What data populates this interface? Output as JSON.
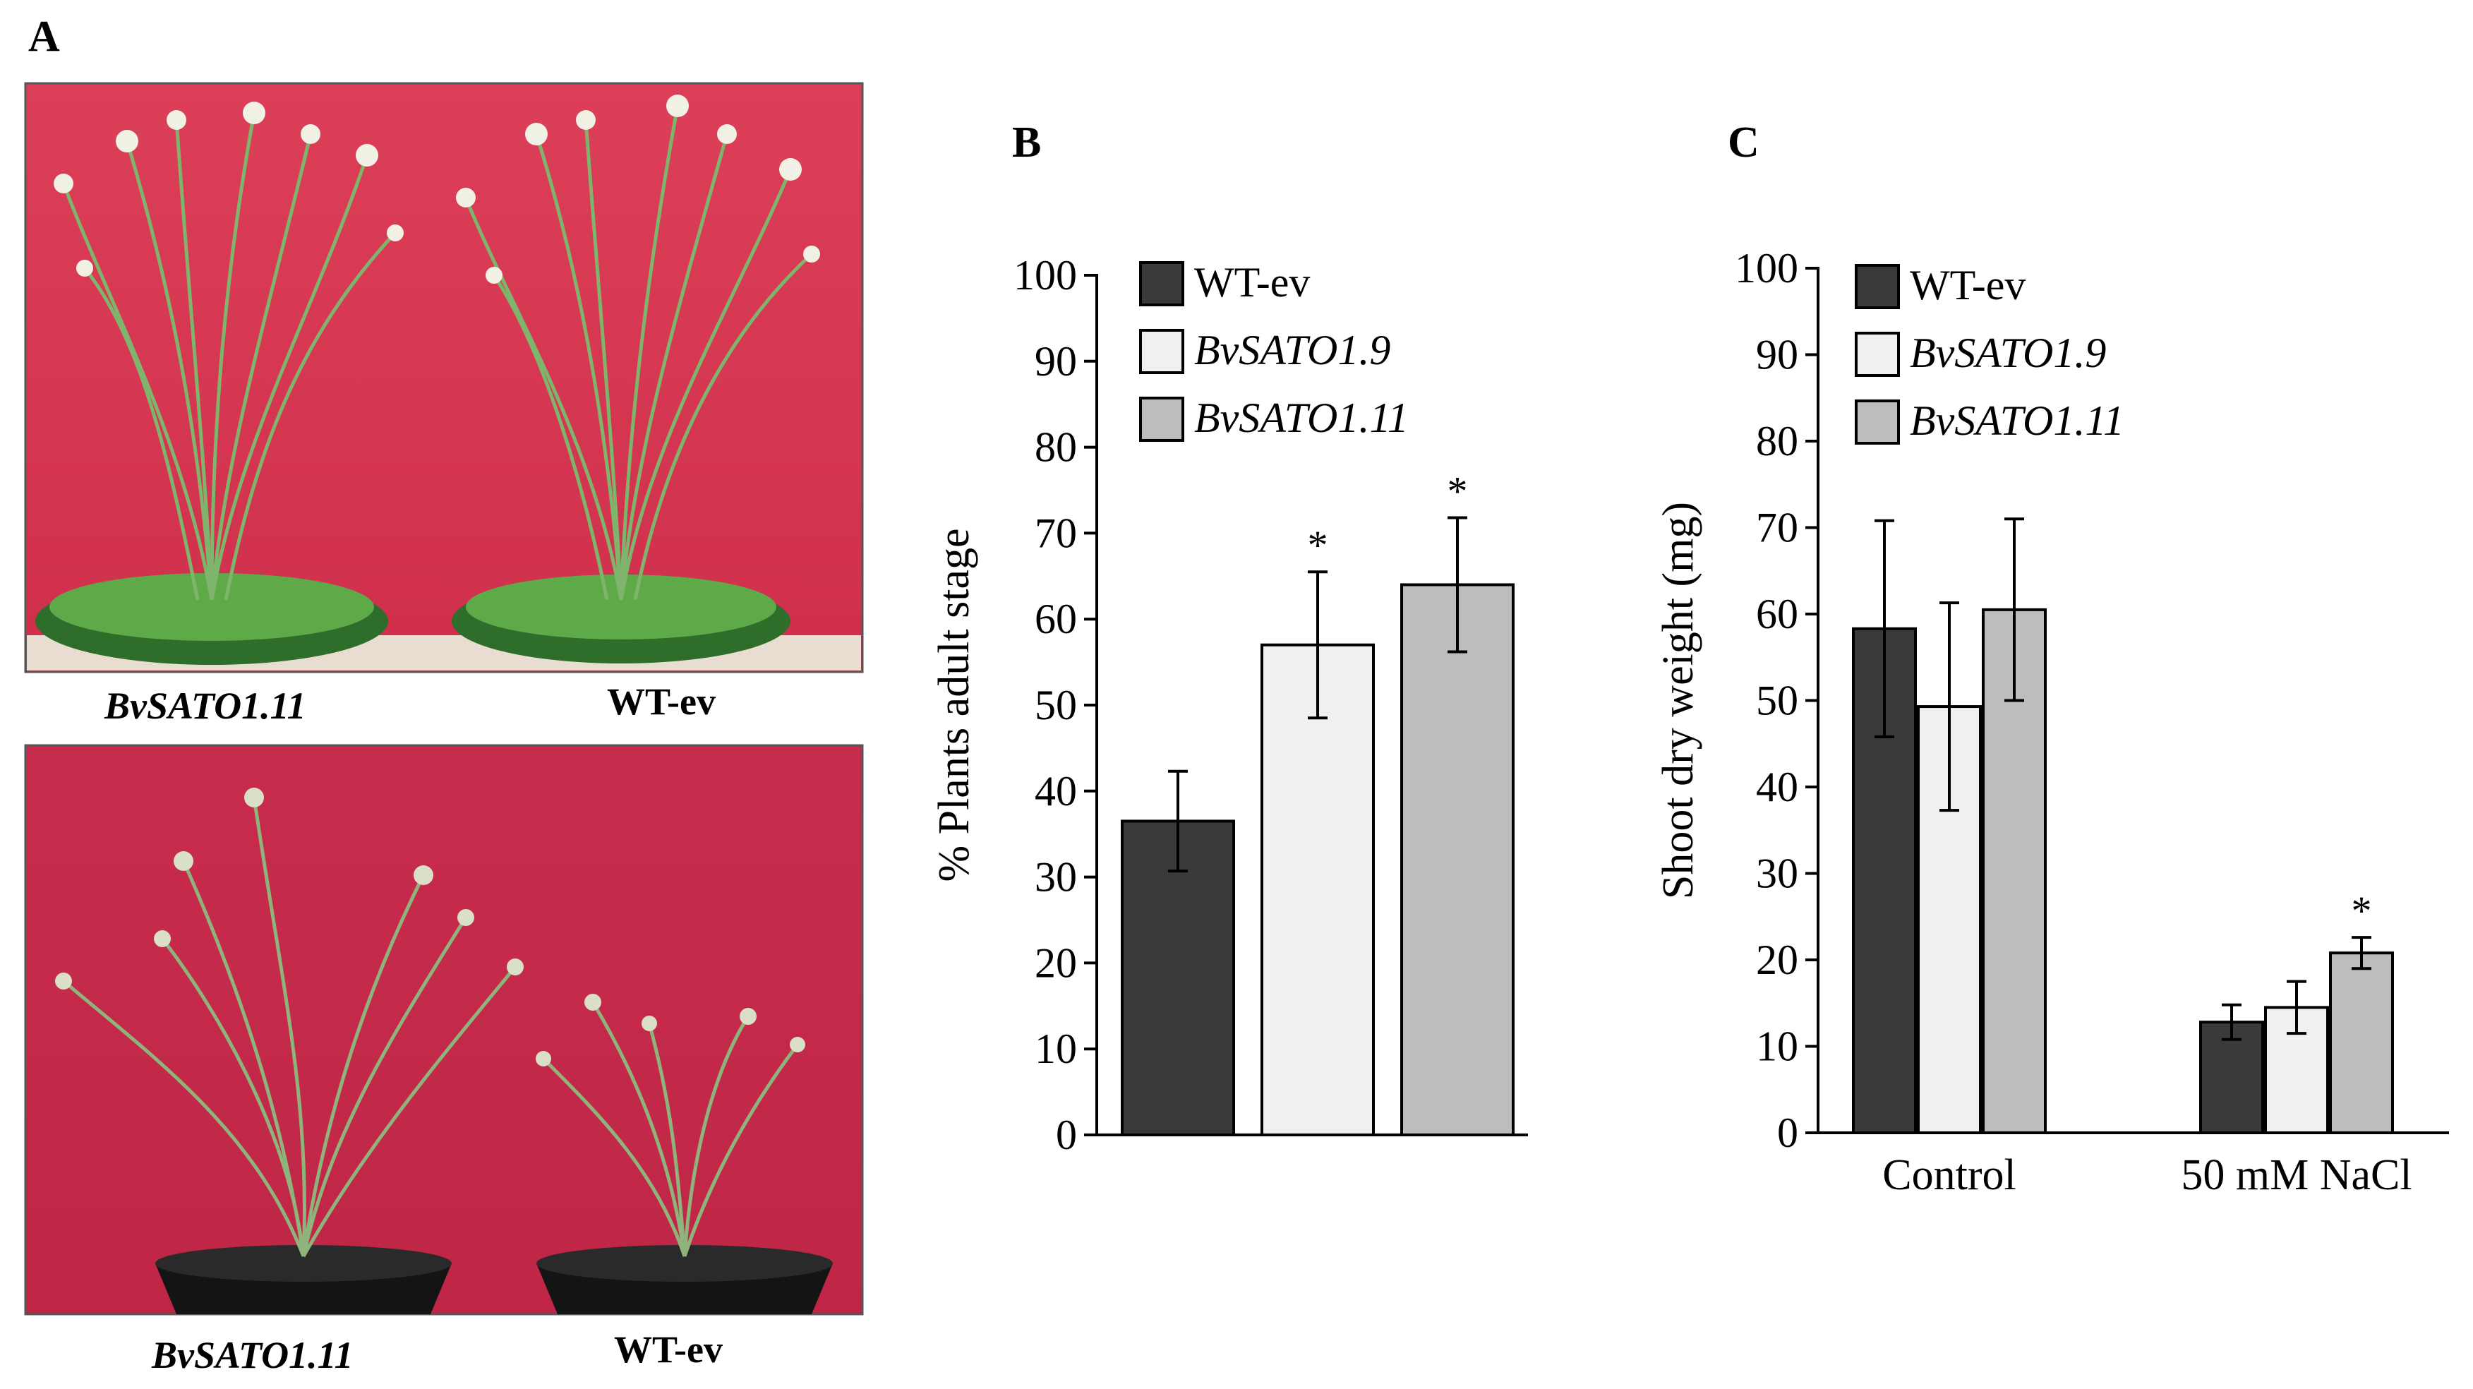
{
  "panels": {
    "a": {
      "letter": "A",
      "photos": [
        {
          "caption_left": "BvSATO1.11",
          "caption_right": "WT-ev"
        },
        {
          "caption_left": "BvSATO1.11",
          "caption_right": "WT-ev"
        }
      ]
    },
    "b": {
      "letter": "B"
    },
    "c": {
      "letter": "C"
    }
  },
  "colors": {
    "wt_ev": "#3a3a3a",
    "sato19": "#f0f0f0",
    "sato111": "#bdbdbd",
    "photo_background_top": "#d6354f",
    "photo_background_bottom": "#c8284a",
    "foliage": "#6aa84f"
  },
  "chart_data": [
    {
      "panel": "B",
      "type": "bar",
      "ylabel": "% Plants adult stage",
      "xlabel": "",
      "ylim": [
        0,
        100
      ],
      "yticks": [
        0,
        10,
        20,
        30,
        40,
        50,
        60,
        70,
        80,
        90,
        100
      ],
      "categories": [
        ""
      ],
      "series": [
        {
          "name": "WT-ev",
          "values": [
            36.5
          ],
          "error": [
            5.8
          ],
          "significant": [
            false
          ]
        },
        {
          "name": "BvSATO1.9",
          "values": [
            57
          ],
          "error": [
            8.5
          ],
          "significant": [
            true
          ]
        },
        {
          "name": "BvSATO1.11",
          "values": [
            64
          ],
          "error": [
            7.8
          ],
          "significant": [
            true
          ]
        }
      ],
      "significance_marker": "*",
      "legend": {
        "placement": "top-left",
        "entries": [
          "WT-ev",
          "BvSATO1.9",
          "BvSATO1.11"
        ]
      },
      "grid": false
    },
    {
      "panel": "C",
      "type": "bar",
      "ylabel": "Shoot dry weight (mg)",
      "xlabel": "",
      "ylim": [
        0,
        100
      ],
      "yticks": [
        0,
        10,
        20,
        30,
        40,
        50,
        60,
        70,
        80,
        90,
        100
      ],
      "categories": [
        "Control",
        "50 mM NaCl"
      ],
      "series": [
        {
          "name": "WT-ev",
          "values": [
            58.3,
            12.8
          ],
          "error": [
            12.5,
            2.0
          ],
          "significant": [
            false,
            false
          ]
        },
        {
          "name": "BvSATO1.9",
          "values": [
            49.3,
            14.5
          ],
          "error": [
            12,
            3.0
          ],
          "significant": [
            false,
            false
          ]
        },
        {
          "name": "BvSATO1.11",
          "values": [
            60.5,
            20.8
          ],
          "error": [
            10.5,
            1.8
          ],
          "significant": [
            false,
            true
          ]
        }
      ],
      "significance_marker": "*",
      "legend": {
        "placement": "top-left",
        "entries": [
          "WT-ev",
          "BvSATO1.9",
          "BvSATO1.11"
        ]
      },
      "grid": false
    }
  ]
}
